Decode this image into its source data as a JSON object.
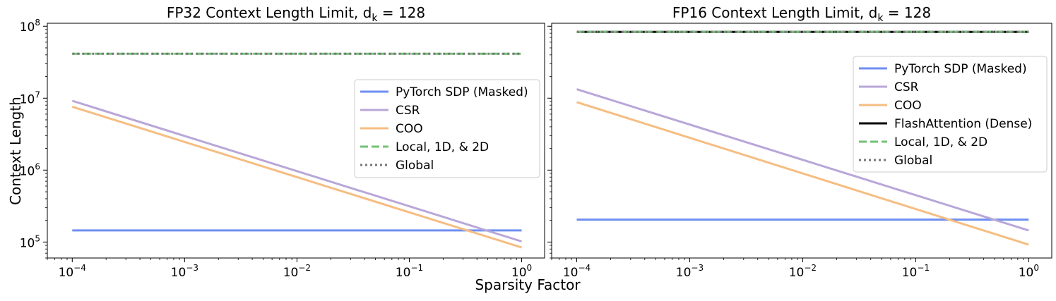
{
  "figure": {
    "xlabel": "Sparsity Factor",
    "ylabel": "Context Length"
  },
  "chart_data": [
    {
      "type": "line",
      "title": "FP32 Context Length Limit, d",
      "title_subscript": "k",
      "title_suffix": " = 128",
      "xscale": "log",
      "yscale": "log",
      "xlim": [
        6e-05,
        1.6
      ],
      "ylim": [
        60000,
        110000000
      ],
      "xticks": [
        0.0001,
        0.001,
        0.01,
        0.1,
        1
      ],
      "xtick_labels": [
        {
          "base": "10",
          "exp": "−4"
        },
        {
          "base": "10",
          "exp": "−3"
        },
        {
          "base": "10",
          "exp": "−2"
        },
        {
          "base": "10",
          "exp": "−1"
        },
        {
          "base": "10",
          "exp": "0"
        }
      ],
      "yticks": [
        100000,
        1000000,
        10000000,
        100000000
      ],
      "ytick_labels": [
        {
          "base": "10",
          "exp": "5"
        },
        {
          "base": "10",
          "exp": "6"
        },
        {
          "base": "10",
          "exp": "7"
        },
        {
          "base": "10",
          "exp": "8"
        }
      ],
      "legend_position": "center-right",
      "series": [
        {
          "name": "PyTorch SDP (Masked)",
          "color": "#6f8ff0",
          "style": "solid",
          "x": [
            0.0001,
            1
          ],
          "y": [
            145000,
            145000
          ]
        },
        {
          "name": "CSR",
          "color": "#b8a7d8",
          "style": "solid",
          "x": [
            0.0001,
            1
          ],
          "y": [
            9200000,
            102000
          ]
        },
        {
          "name": "COO",
          "color": "#f6bd82",
          "style": "solid",
          "x": [
            0.0001,
            1
          ],
          "y": [
            7600000,
            84000
          ]
        },
        {
          "name": "Local, 1D, & 2D",
          "color": "#72c275",
          "style": "dashed",
          "x": [
            0.0001,
            1
          ],
          "y": [
            41500000,
            41500000
          ]
        },
        {
          "name": "Global",
          "color": "#777777",
          "style": "dotted",
          "x": [
            0.0001,
            1
          ],
          "y": [
            41500000,
            41500000
          ]
        }
      ]
    },
    {
      "type": "line",
      "title": "FP16 Context Length Limit, d",
      "title_subscript": "k",
      "title_suffix": " = 128",
      "xscale": "log",
      "yscale": "log",
      "xlim": [
        6e-05,
        1.6
      ],
      "ylim": [
        60000,
        110000000
      ],
      "xticks": [
        0.0001,
        0.001,
        0.01,
        0.1,
        1
      ],
      "xtick_labels": [
        {
          "base": "10",
          "exp": "−4"
        },
        {
          "base": "10",
          "exp": "−3"
        },
        {
          "base": "10",
          "exp": "−2"
        },
        {
          "base": "10",
          "exp": "−1"
        },
        {
          "base": "10",
          "exp": "0"
        }
      ],
      "yticks": [
        100000,
        1000000,
        10000000,
        100000000
      ],
      "ytick_labels": [],
      "legend_position": "upper-right",
      "series": [
        {
          "name": "PyTorch SDP (Masked)",
          "color": "#6f8ff0",
          "style": "solid",
          "x": [
            0.0001,
            1
          ],
          "y": [
            205000,
            205000
          ]
        },
        {
          "name": "CSR",
          "color": "#b8a7d8",
          "style": "solid",
          "x": [
            0.0001,
            1
          ],
          "y": [
            13300000,
            145000
          ]
        },
        {
          "name": "COO",
          "color": "#f6bd82",
          "style": "solid",
          "x": [
            0.0001,
            1
          ],
          "y": [
            8800000,
            92000
          ]
        },
        {
          "name": "FlashAttention (Dense)",
          "color": "#000000",
          "style": "solid",
          "x": [
            0.0001,
            1
          ],
          "y": [
            83500000,
            83500000
          ]
        },
        {
          "name": "Local, 1D, & 2D",
          "color": "#72c275",
          "style": "dashed",
          "x": [
            0.0001,
            1
          ],
          "y": [
            83500000,
            83500000
          ]
        },
        {
          "name": "Global",
          "color": "#777777",
          "style": "dotted",
          "x": [
            0.0001,
            1
          ],
          "y": [
            83500000,
            83500000
          ]
        }
      ]
    }
  ]
}
